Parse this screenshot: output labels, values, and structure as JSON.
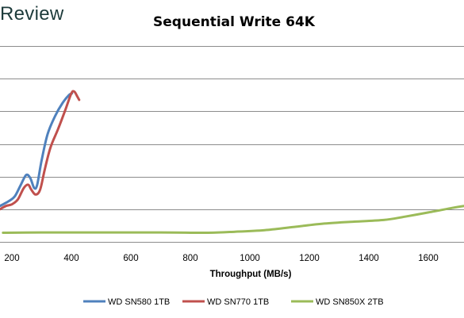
{
  "brand": {
    "text": "Review"
  },
  "chart_data": {
    "type": "line",
    "title": "Sequential Write 64K",
    "xlabel": "Throughput (MB/s)",
    "ylabel": "",
    "xlim": [
      160,
      1720
    ],
    "xticks": [
      200,
      400,
      600,
      800,
      1000,
      1200,
      1400,
      1600
    ],
    "ylim": [
      0,
      6
    ],
    "grid": true,
    "legend": "bottom",
    "series": [
      {
        "name": "WD SN580 1TB",
        "color": "#4f81bd",
        "points": [
          [
            160,
            1.1
          ],
          [
            190,
            1.25
          ],
          [
            210,
            1.4
          ],
          [
            230,
            1.75
          ],
          [
            248,
            2.05
          ],
          [
            262,
            1.95
          ],
          [
            275,
            1.65
          ],
          [
            285,
            1.75
          ],
          [
            300,
            2.5
          ],
          [
            320,
            3.3
          ],
          [
            345,
            3.85
          ],
          [
            370,
            4.25
          ],
          [
            392,
            4.5
          ],
          [
            402,
            4.55
          ]
        ]
      },
      {
        "name": "WD SN770 1TB",
        "color": "#c0504d",
        "points": [
          [
            160,
            1.0
          ],
          [
            180,
            1.1
          ],
          [
            200,
            1.15
          ],
          [
            220,
            1.3
          ],
          [
            240,
            1.65
          ],
          [
            255,
            1.75
          ],
          [
            265,
            1.6
          ],
          [
            280,
            1.45
          ],
          [
            295,
            1.6
          ],
          [
            310,
            2.2
          ],
          [
            330,
            2.9
          ],
          [
            355,
            3.45
          ],
          [
            380,
            4.05
          ],
          [
            400,
            4.55
          ],
          [
            410,
            4.6
          ],
          [
            420,
            4.45
          ],
          [
            426,
            4.35
          ]
        ]
      },
      {
        "name": "WD SN850X 2TB",
        "color": "#9bbb59",
        "points": [
          [
            170,
            0.28
          ],
          [
            300,
            0.29
          ],
          [
            500,
            0.29
          ],
          [
            700,
            0.29
          ],
          [
            860,
            0.28
          ],
          [
            950,
            0.31
          ],
          [
            1050,
            0.36
          ],
          [
            1150,
            0.46
          ],
          [
            1250,
            0.56
          ],
          [
            1350,
            0.62
          ],
          [
            1450,
            0.67
          ],
          [
            1520,
            0.77
          ],
          [
            1600,
            0.9
          ],
          [
            1680,
            1.04
          ],
          [
            1720,
            1.1
          ]
        ]
      }
    ]
  }
}
